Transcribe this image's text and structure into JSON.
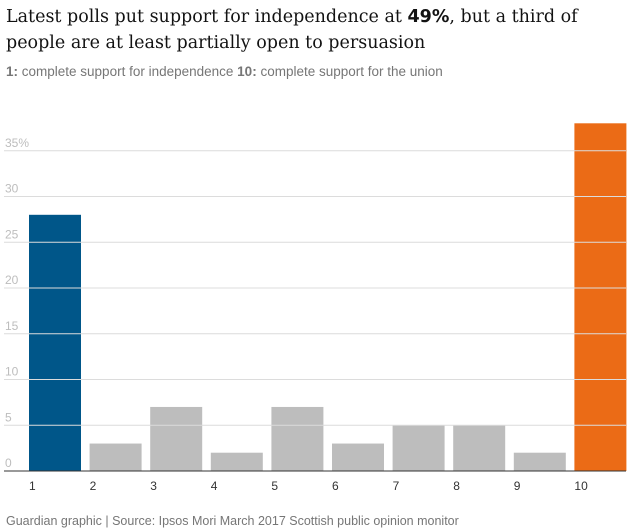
{
  "title": {
    "before": "Latest polls put support for independence at ",
    "bold": "49%",
    "after": ", but a third of people are at least partially open to persuasion"
  },
  "subtitle": {
    "key1": "1:",
    "text1": " complete support for independence ",
    "key2": "10:",
    "text2": " complete support for the union"
  },
  "source": "Guardian graphic | Source: Ipsos Mori March 2017 Scottish public opinion monitor",
  "colors": {
    "independence": "#005689",
    "union": "#eb6b16",
    "middle": "#bdbdbd"
  },
  "chart_data": {
    "type": "bar",
    "categories": [
      "1",
      "2",
      "3",
      "4",
      "5",
      "6",
      "7",
      "8",
      "9",
      "10"
    ],
    "values": [
      28,
      3,
      7,
      2,
      7,
      3,
      5,
      5,
      2,
      38
    ],
    "ylim": [
      0,
      38
    ],
    "yticks": [
      "0",
      "5",
      "10",
      "15",
      "20",
      "25",
      "30",
      "35%"
    ],
    "ytick_values": [
      0,
      5,
      10,
      15,
      20,
      25,
      30,
      35
    ],
    "grid": true
  }
}
